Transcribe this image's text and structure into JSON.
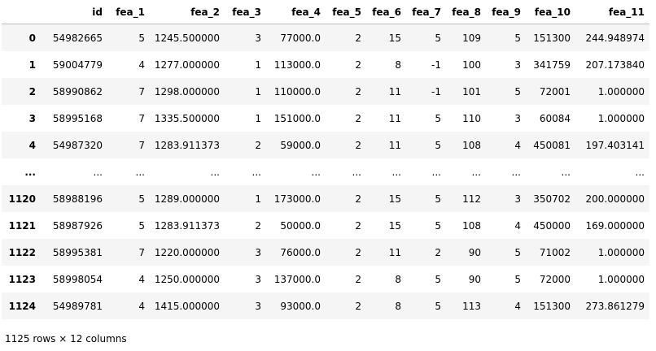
{
  "table": {
    "index_header": "",
    "columns": [
      "id",
      "fea_1",
      "fea_2",
      "fea_3",
      "fea_4",
      "fea_5",
      "fea_6",
      "fea_7",
      "fea_8",
      "fea_9",
      "fea_10",
      "fea_11"
    ],
    "rows": [
      {
        "index": "0",
        "cells": [
          "54982665",
          "5",
          "1245.500000",
          "3",
          "77000.0",
          "2",
          "15",
          "5",
          "109",
          "5",
          "151300",
          "244.948974"
        ]
      },
      {
        "index": "1",
        "cells": [
          "59004779",
          "4",
          "1277.000000",
          "1",
          "113000.0",
          "2",
          "8",
          "-1",
          "100",
          "3",
          "341759",
          "207.173840"
        ]
      },
      {
        "index": "2",
        "cells": [
          "58990862",
          "7",
          "1298.000000",
          "1",
          "110000.0",
          "2",
          "11",
          "-1",
          "101",
          "5",
          "72001",
          "1.000000"
        ]
      },
      {
        "index": "3",
        "cells": [
          "58995168",
          "7",
          "1335.500000",
          "1",
          "151000.0",
          "2",
          "11",
          "5",
          "110",
          "3",
          "60084",
          "1.000000"
        ]
      },
      {
        "index": "4",
        "cells": [
          "54987320",
          "7",
          "1283.911373",
          "2",
          "59000.0",
          "2",
          "11",
          "5",
          "108",
          "4",
          "450081",
          "197.403141"
        ]
      },
      {
        "index": "...",
        "cells": [
          "...",
          "...",
          "...",
          "...",
          "...",
          "...",
          "...",
          "...",
          "...",
          "...",
          "...",
          "..."
        ]
      },
      {
        "index": "1120",
        "cells": [
          "58988196",
          "5",
          "1289.000000",
          "1",
          "173000.0",
          "2",
          "15",
          "5",
          "112",
          "3",
          "350702",
          "200.000000"
        ]
      },
      {
        "index": "1121",
        "cells": [
          "58987926",
          "5",
          "1283.911373",
          "2",
          "50000.0",
          "2",
          "15",
          "5",
          "108",
          "4",
          "450000",
          "169.000000"
        ]
      },
      {
        "index": "1122",
        "cells": [
          "58995381",
          "7",
          "1220.000000",
          "3",
          "76000.0",
          "2",
          "11",
          "2",
          "90",
          "5",
          "71002",
          "1.000000"
        ]
      },
      {
        "index": "1123",
        "cells": [
          "58998054",
          "4",
          "1250.000000",
          "3",
          "137000.0",
          "2",
          "8",
          "5",
          "90",
          "5",
          "72000",
          "1.000000"
        ]
      },
      {
        "index": "1124",
        "cells": [
          "54989781",
          "4",
          "1415.000000",
          "3",
          "93000.0",
          "2",
          "8",
          "5",
          "113",
          "4",
          "151300",
          "273.861279"
        ]
      }
    ]
  },
  "footer": {
    "shape_text": "1125 rows × 12 columns"
  },
  "colors": {
    "striped_row": "#f5f5f5",
    "header_border": "#bdbdbd"
  }
}
